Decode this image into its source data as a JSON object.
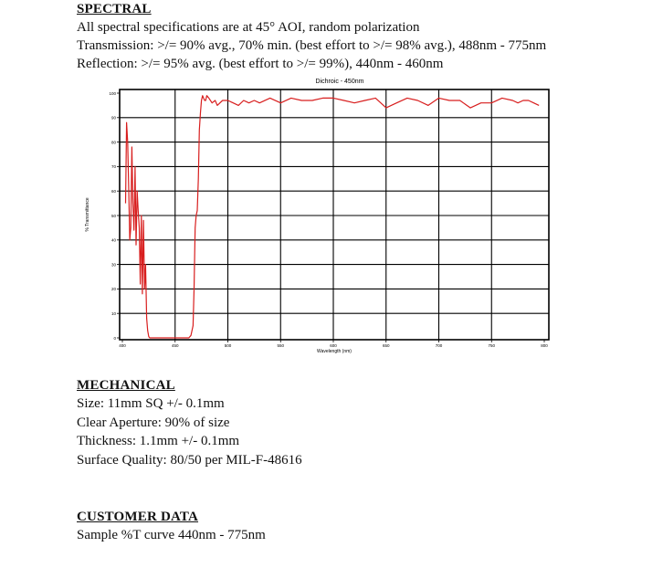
{
  "spectral": {
    "title": "SPECTRAL",
    "lines": [
      "All spectral specifications are at 45° AOI, random polarization",
      "Transmission: >/= 90% avg., 70% min. (best effort to >/= 98% avg.), 488nm - 775nm",
      "Reflection:  >/= 95% avg. (best effort to >/= 99%), 440nm - 460nm"
    ]
  },
  "chart_data": {
    "type": "line",
    "title": "Dichroic - 450nm",
    "xlabel": "Wavelength (nm)",
    "ylabel": "% Transmittance",
    "xlim": [
      400,
      800
    ],
    "ylim": [
      0,
      100
    ],
    "xticks": [
      "400",
      "450",
      "500",
      "550",
      "600",
      "650",
      "700",
      "750",
      "800"
    ],
    "yticks": [
      "0",
      "10",
      "20",
      "30",
      "40",
      "50",
      "60",
      "70",
      "80",
      "90",
      "100"
    ],
    "grid": true,
    "color": "#d81e1e",
    "series": [
      {
        "x": [
          403,
          404,
          405,
          406,
          407,
          408,
          409,
          410,
          411,
          412,
          413,
          414,
          415,
          416,
          417,
          418,
          419,
          420,
          421,
          422,
          423,
          424,
          425,
          426,
          427,
          428,
          430,
          435,
          440,
          445,
          450,
          455,
          460,
          463,
          465,
          467,
          468,
          469,
          470,
          471,
          472,
          473,
          474,
          475,
          476,
          477,
          478,
          479,
          480,
          482,
          485,
          488,
          490,
          495,
          500,
          505,
          510,
          515,
          520,
          525,
          530,
          540,
          550,
          560,
          570,
          580,
          590,
          600,
          610,
          620,
          630,
          640,
          650,
          660,
          670,
          680,
          690,
          700,
          710,
          720,
          730,
          740,
          750,
          760,
          770,
          775,
          780,
          785,
          790,
          795
        ],
        "y": [
          55,
          88,
          80,
          62,
          40,
          45,
          78,
          55,
          44,
          70,
          38,
          60,
          52,
          45,
          22,
          50,
          18,
          48,
          20,
          30,
          8,
          3,
          0.5,
          0,
          0,
          0,
          0,
          0,
          0,
          0,
          0,
          0,
          0,
          0,
          1,
          5,
          20,
          45,
          50,
          52,
          65,
          85,
          92,
          97,
          99,
          98,
          97,
          97,
          99,
          98,
          96,
          97,
          95,
          97,
          97,
          96,
          95,
          97,
          96,
          97,
          96,
          98,
          96,
          98,
          97,
          97,
          98,
          98,
          97,
          96,
          97,
          98,
          94,
          96,
          98,
          97,
          95,
          98,
          97,
          97,
          94,
          96,
          96,
          98,
          97,
          96,
          97,
          97,
          96,
          95
        ]
      }
    ]
  },
  "mechanical": {
    "title": "MECHANICAL",
    "lines": [
      "Size: 11mm SQ +/- 0.1mm",
      "Clear Aperture:  90% of size",
      "Thickness: 1.1mm +/- 0.1mm",
      "Surface Quality: 80/50 per MIL-F-48616"
    ]
  },
  "customer": {
    "title": "CUSTOMER DATA",
    "lines": [
      "Sample %T curve 440nm - 775nm"
    ]
  }
}
